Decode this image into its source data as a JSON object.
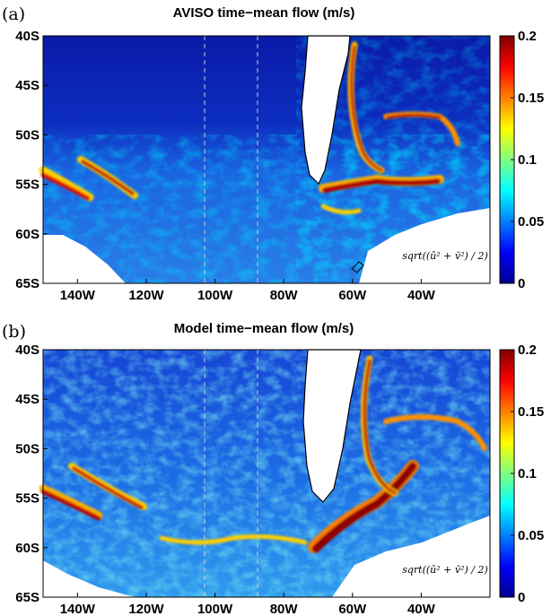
{
  "chart_data": [
    {
      "type": "heatmap",
      "panel_label": "(a)",
      "title": "AVISO time−mean flow (m/s)",
      "x_ticks": [
        "140W",
        "120W",
        "100W",
        "80W",
        "60W",
        "40W"
      ],
      "y_ticks": [
        "40S",
        "45S",
        "50S",
        "55S",
        "60S",
        "65S"
      ],
      "x_range_deg": [
        -150,
        -20
      ],
      "y_range_deg": [
        -65,
        -40
      ],
      "dashed_meridians_deg": [
        -103,
        -88
      ],
      "colorbar": {
        "min": 0,
        "max": 0.2,
        "ticks": [
          "0",
          "0.05",
          "0.1",
          "0.15",
          "0.2"
        ],
        "colormap": "jet"
      },
      "annotation": "sqrt((ū² + v̄²) / 2)"
    },
    {
      "type": "heatmap",
      "panel_label": "(b)",
      "title": "Model time−mean flow (m/s)",
      "x_ticks": [
        "140W",
        "120W",
        "100W",
        "80W",
        "60W",
        "40W"
      ],
      "y_ticks": [
        "40S",
        "45S",
        "50S",
        "55S",
        "60S",
        "65S"
      ],
      "x_range_deg": [
        -150,
        -20
      ],
      "y_range_deg": [
        -65,
        -40
      ],
      "dashed_meridians_deg": [
        -103,
        -88
      ],
      "colorbar": {
        "min": 0,
        "max": 0.2,
        "ticks": [
          "0",
          "0.05",
          "0.1",
          "0.15",
          "0.2"
        ],
        "colormap": "jet"
      },
      "annotation": "sqrt((ū² + v̄²) / 2)"
    }
  ],
  "colors": {
    "jet_low": "#00008f",
    "jet_mid": "#19b8f0",
    "jet_high": "#8f0000",
    "land": "#ffffff",
    "coast": "#000000",
    "dashed_line": "#c8c8c8"
  }
}
